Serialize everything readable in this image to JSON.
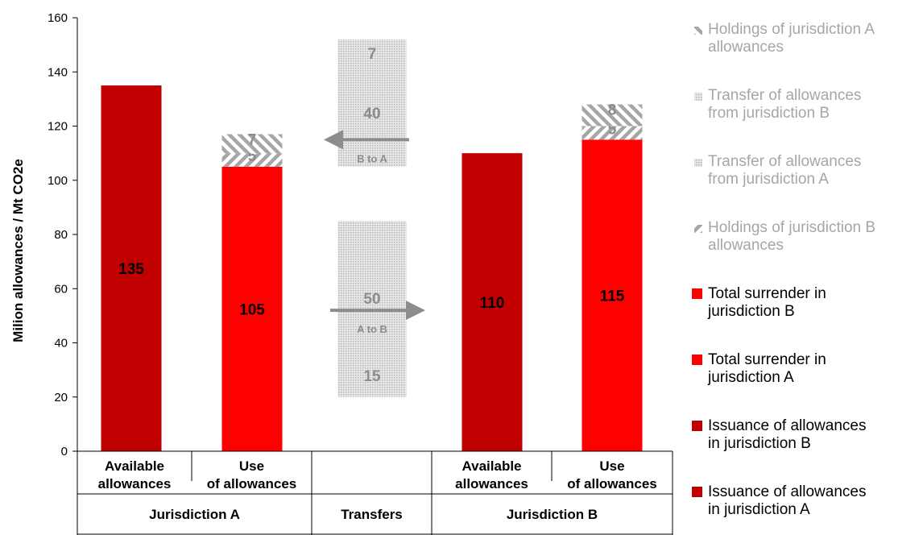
{
  "chart_data": {
    "type": "bar",
    "ylabel": "Milion allowances / Mt CO2e",
    "ylim": [
      0,
      160
    ],
    "yticks": [
      0,
      20,
      40,
      60,
      80,
      100,
      120,
      140,
      160
    ],
    "grid": false,
    "legend_position": "right",
    "bars": [
      {
        "group": "Jurisdiction A",
        "label": "Available allowances",
        "segments": [
          {
            "series": "Issuance of allowances in jurisdiction A",
            "value": 135,
            "label": "135"
          }
        ]
      },
      {
        "group": "Jurisdiction A",
        "label": "Use of allowances",
        "segments": [
          {
            "series": "Total surrender in jurisdiction A",
            "value": 105,
            "label": "105"
          },
          {
            "series": "Holdings of jurisdiction B allowances",
            "value": 5,
            "label": "5"
          },
          {
            "series": "Holdings of jurisdiction A allowances",
            "value": 7,
            "label": "7"
          }
        ]
      },
      {
        "group": "Transfers",
        "label": "",
        "floating": [
          {
            "series": "Transfer of allowances from jurisdiction A",
            "from": 20,
            "to": 85,
            "labels": [
              "15",
              "50"
            ]
          },
          {
            "series": "Transfer of allowances from jurisdiction B",
            "from": 105,
            "to": 152,
            "labels": [
              "40",
              "7"
            ]
          }
        ]
      },
      {
        "group": "Jurisdiction B",
        "label": "Available allowances",
        "segments": [
          {
            "series": "Issuance of allowances in jurisdiction B",
            "value": 110,
            "label": "110"
          }
        ]
      },
      {
        "group": "Jurisdiction B",
        "label": "Use of allowances",
        "segments": [
          {
            "series": "Total surrender in jurisdiction B",
            "value": 115,
            "label": "115"
          },
          {
            "series": "Holdings of jurisdiction B allowances",
            "value": 5,
            "label": "5"
          },
          {
            "series": "Holdings of jurisdiction A allowances",
            "value": 8,
            "label": "8"
          }
        ]
      }
    ],
    "arrows": [
      {
        "label": "B to A",
        "direction": "left",
        "y": 115
      },
      {
        "label": "A to B",
        "direction": "right",
        "y": 52
      }
    ],
    "categories_top": [
      "Available allowances",
      "Use of allowances",
      "",
      "Available allowances",
      "Use of allowances"
    ],
    "groups": [
      "Jurisdiction A",
      "Transfers",
      "Jurisdiction B"
    ],
    "legend": [
      {
        "name": "Holdings of jurisdiction A allowances",
        "lines": [
          "Holdings of jurisdiction A",
          "allowances"
        ],
        "style": "hatch-back",
        "color": "#a6a6a6",
        "text_color": "#a6a6a6"
      },
      {
        "name": "Transfer of allowances from jurisdiction B",
        "lines": [
          "Transfer of allowances",
          "from jurisdiction B"
        ],
        "style": "dots",
        "color": "#bfbfbf",
        "text_color": "#a6a6a6"
      },
      {
        "name": "Transfer of allowances from jurisdiction A",
        "lines": [
          "Transfer of allowances",
          "from jurisdiction A"
        ],
        "style": "dots",
        "color": "#bfbfbf",
        "text_color": "#a6a6a6"
      },
      {
        "name": "Holdings of jurisdiction B allowances",
        "lines": [
          "Holdings of jurisdiction B",
          "allowances"
        ],
        "style": "hatch-fwd",
        "color": "#a6a6a6",
        "text_color": "#a6a6a6"
      },
      {
        "name": "Total surrender in jurisdiction B",
        "lines": [
          "Total surrender in",
          "jurisdiction B"
        ],
        "style": "solid",
        "color": "#ff0000",
        "text_color": "#000000"
      },
      {
        "name": "Total surrender in jurisdiction A",
        "lines": [
          "Total surrender in",
          "jurisdiction A"
        ],
        "style": "solid",
        "color": "#ff0000",
        "text_color": "#000000"
      },
      {
        "name": "Issuance of allowances in jurisdiction B",
        "lines": [
          "Issuance of allowances",
          "in jurisdiction B"
        ],
        "style": "solid",
        "color": "#c00000",
        "text_color": "#000000"
      },
      {
        "name": "Issuance of allowances in jurisdiction A",
        "lines": [
          "Issuance of allowances",
          "in jurisdiction A"
        ],
        "style": "solid",
        "color": "#c00000",
        "text_color": "#000000"
      }
    ],
    "colors": {
      "issuance": "#c00000",
      "surrender": "#ff0000",
      "transfer": "#bfbfbf",
      "hatch": "#a6a6a6",
      "arrow": "#8c8c8c",
      "label_grey": "#8c8c8c"
    }
  }
}
